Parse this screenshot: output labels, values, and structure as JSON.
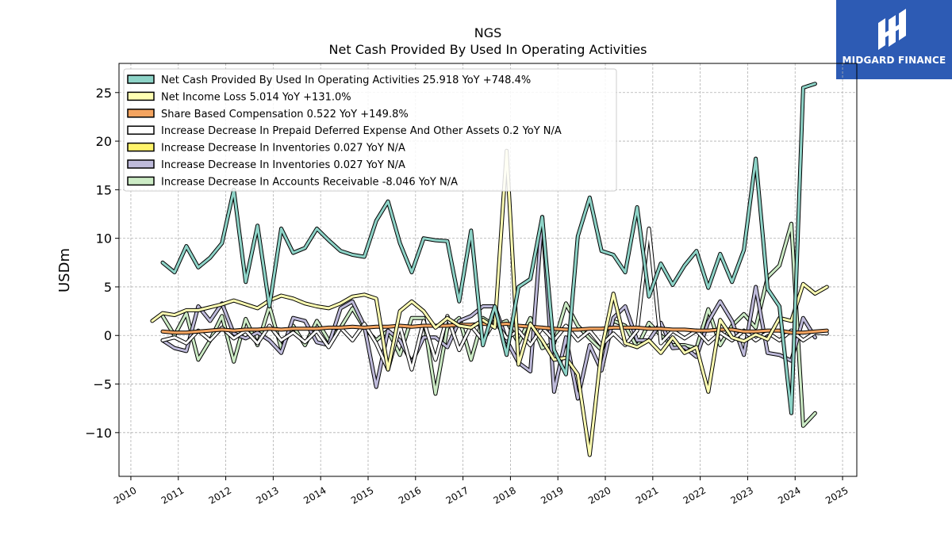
{
  "chart_data": {
    "type": "line",
    "title": "NGS",
    "subtitle": "Net Cash Provided By Used In Operating Activities",
    "ylabel": "USDm",
    "xlabel": "",
    "xlim": [
      2009.75,
      2025.3
    ],
    "ylim": [
      -14.5,
      28
    ],
    "x_ticks": [
      2010,
      2011,
      2012,
      2013,
      2014,
      2015,
      2016,
      2017,
      2018,
      2019,
      2020,
      2021,
      2022,
      2023,
      2024,
      2025
    ],
    "y_ticks": [
      -10,
      -5,
      0,
      5,
      10,
      15,
      20,
      25
    ],
    "grid": true,
    "legend_position": "top-left",
    "series": [
      {
        "name": "Net Cash Provided By Used In Operating Activities",
        "legend_label": "Net Cash Provided By Used In Operating Activities  25.918 YoY +748.4%",
        "color": "#8dd3c7",
        "x": [
          2010.67,
          2010.92,
          2011.17,
          2011.42,
          2011.67,
          2011.92,
          2012.17,
          2012.42,
          2012.67,
          2012.92,
          2013.17,
          2013.42,
          2013.67,
          2013.92,
          2014.17,
          2014.42,
          2014.67,
          2014.92,
          2015.17,
          2015.42,
          2015.67,
          2015.92,
          2016.17,
          2016.42,
          2016.67,
          2016.92,
          2017.17,
          2017.42,
          2017.67,
          2017.92,
          2018.17,
          2018.42,
          2018.67,
          2018.92,
          2019.17,
          2019.42,
          2019.67,
          2019.92,
          2020.17,
          2020.42,
          2020.67,
          2020.92,
          2021.17,
          2021.42,
          2021.67,
          2021.92,
          2022.17,
          2022.42,
          2022.67,
          2022.92,
          2023.17,
          2023.42,
          2023.67,
          2023.92,
          2024.17,
          2024.42,
          2024.67
        ],
        "y": [
          7.5,
          6.5,
          9.2,
          7.0,
          8.0,
          9.5,
          15.0,
          5.5,
          11.3,
          3.0,
          11.0,
          8.5,
          9.0,
          11.0,
          9.8,
          8.7,
          8.3,
          8.1,
          11.8,
          13.8,
          9.5,
          6.5,
          10.0,
          9.8,
          9.7,
          3.5,
          10.8,
          -1.0,
          3.0,
          -2.0,
          5.0,
          5.8,
          12.2,
          -1.5,
          -4.0,
          10.2,
          14.2,
          8.7,
          8.3,
          6.5,
          13.2,
          4.0,
          7.4,
          5.2,
          7.2,
          8.7,
          4.9,
          8.4,
          5.5,
          8.8,
          18.2,
          4.8,
          3.0,
          -8.0,
          25.5,
          25.9,
          null
        ]
      },
      {
        "name": "Net Income Loss",
        "legend_label": "Net Income Loss  5.014 YoY +131.0%",
        "color": "#ffffb3",
        "x": [
          2010.45,
          2010.67,
          2010.92,
          2011.17,
          2011.42,
          2011.67,
          2011.92,
          2012.17,
          2012.42,
          2012.67,
          2012.92,
          2013.17,
          2013.42,
          2013.67,
          2013.92,
          2014.17,
          2014.42,
          2014.67,
          2014.92,
          2015.17,
          2015.42,
          2015.67,
          2015.92,
          2016.17,
          2016.42,
          2016.67,
          2016.92,
          2017.17,
          2017.42,
          2017.67,
          2017.92,
          2018.17,
          2018.42,
          2018.67,
          2018.92,
          2019.17,
          2019.42,
          2019.67,
          2019.92,
          2020.17,
          2020.42,
          2020.67,
          2020.92,
          2021.17,
          2021.42,
          2021.67,
          2021.92,
          2022.17,
          2022.42,
          2022.67,
          2022.92,
          2023.17,
          2023.42,
          2023.67,
          2023.92,
          2024.17,
          2024.42,
          2024.67
        ],
        "y": [
          1.5,
          2.3,
          2.1,
          2.6,
          2.6,
          2.9,
          3.2,
          3.6,
          3.2,
          2.8,
          3.6,
          4.1,
          3.8,
          3.3,
          3.0,
          2.8,
          3.3,
          4.0,
          4.2,
          3.8,
          -3.5,
          2.5,
          3.5,
          2.5,
          0.8,
          1.8,
          1.0,
          0.8,
          1.6,
          0.8,
          19.0,
          -3.0,
          1.2,
          -0.5,
          -2.5,
          -2.3,
          -4.0,
          -12.3,
          -1.5,
          4.3,
          -0.8,
          -1.2,
          -0.5,
          -1.8,
          -0.2,
          -1.8,
          -1.2,
          -5.8,
          1.6,
          -0.2,
          -0.6,
          0.1,
          -0.4,
          1.8,
          1.5,
          5.3,
          4.3,
          5.0
        ]
      },
      {
        "name": "Share Based Compensation",
        "legend_label": "Share Based Compensation  0.522 YoY +149.8%",
        "color": "#f4a460",
        "x": [
          2010.67,
          2010.92,
          2011.17,
          2011.42,
          2011.67,
          2011.92,
          2012.17,
          2012.42,
          2012.67,
          2012.92,
          2013.17,
          2013.42,
          2013.67,
          2013.92,
          2014.17,
          2014.42,
          2014.67,
          2014.92,
          2015.17,
          2015.42,
          2015.67,
          2015.92,
          2016.17,
          2016.42,
          2016.67,
          2016.92,
          2017.17,
          2017.42,
          2017.67,
          2017.92,
          2018.17,
          2018.42,
          2018.67,
          2018.92,
          2019.17,
          2019.42,
          2019.67,
          2019.92,
          2020.17,
          2020.42,
          2020.67,
          2020.92,
          2021.17,
          2021.42,
          2021.67,
          2021.92,
          2022.17,
          2022.42,
          2022.67,
          2022.92,
          2023.17,
          2023.42,
          2023.67,
          2023.92,
          2024.17,
          2024.42,
          2024.67
        ],
        "y": [
          0.4,
          0.3,
          0.3,
          0.4,
          0.5,
          0.6,
          0.5,
          0.6,
          0.6,
          0.7,
          0.6,
          0.7,
          0.7,
          0.7,
          0.8,
          0.8,
          0.9,
          0.8,
          0.9,
          0.9,
          1.0,
          0.9,
          1.0,
          1.0,
          1.0,
          1.1,
          1.1,
          1.2,
          1.1,
          1.2,
          1.0,
          0.9,
          0.8,
          0.7,
          0.6,
          0.6,
          0.7,
          0.7,
          0.8,
          0.8,
          0.8,
          0.7,
          0.7,
          0.6,
          0.6,
          0.5,
          0.5,
          0.6,
          0.6,
          0.4,
          0.4,
          0.5,
          0.5,
          0.3,
          0.3,
          0.4,
          0.5
        ]
      },
      {
        "name": "Increase Decrease In Prepaid Deferred Expense And Other Assets",
        "legend_label": "Increase Decrease In Prepaid Deferred Expense And Other Assets  0.2 YoY N/A",
        "color": "#ffffff",
        "x": [
          2010.67,
          2010.92,
          2011.17,
          2011.42,
          2011.67,
          2011.92,
          2012.17,
          2012.42,
          2012.67,
          2012.92,
          2013.17,
          2013.42,
          2013.67,
          2013.92,
          2014.17,
          2014.42,
          2014.67,
          2014.92,
          2015.17,
          2015.42,
          2015.67,
          2015.92,
          2016.17,
          2016.42,
          2016.67,
          2016.92,
          2017.17,
          2017.42,
          2017.67,
          2017.92,
          2018.17,
          2018.42,
          2018.67,
          2018.92,
          2019.17,
          2019.42,
          2019.67,
          2019.92,
          2020.17,
          2020.42,
          2020.67,
          2020.92,
          2021.17,
          2021.42,
          2021.67,
          2021.92,
          2022.17,
          2022.42,
          2022.67,
          2022.92,
          2023.17,
          2023.42,
          2023.67,
          2023.92,
          2024.17,
          2024.42,
          2024.67
        ],
        "y": [
          -0.5,
          -0.2,
          -0.8,
          0.5,
          -0.5,
          0.8,
          -0.3,
          0.5,
          -0.8,
          1.0,
          -0.5,
          0.3,
          -0.7,
          0.5,
          -1.2,
          0.8,
          -0.5,
          1.2,
          -0.8,
          -3.5,
          1.0,
          -3.5,
          1.5,
          -2.5,
          2.0,
          -1.5,
          1.0,
          -0.5,
          1.5,
          -0.3,
          0.5,
          -1.0,
          0.8,
          -0.5,
          1.0,
          -0.5,
          0.5,
          -1.0,
          0.2,
          -1.0,
          0.5,
          11.0,
          -0.8,
          0.5,
          -0.3,
          0.5,
          -0.8,
          0.3,
          -0.5,
          0.5,
          -0.5,
          0.3,
          -0.5,
          0.5,
          -0.5,
          0.3,
          0.2
        ]
      },
      {
        "name": "Increase Decrease In Inventories",
        "legend_label": "Increase Decrease In Inventories  0.027 YoY N/A",
        "color": "#fff36b",
        "x": [],
        "y": []
      },
      {
        "name": "Increase Decrease In Inventories",
        "legend_label": "Increase Decrease In Inventories  0.027 YoY N/A",
        "color": "#bebada",
        "x": [
          2010.67,
          2010.92,
          2011.17,
          2011.42,
          2011.67,
          2011.92,
          2012.17,
          2012.42,
          2012.67,
          2012.92,
          2013.17,
          2013.42,
          2013.67,
          2013.92,
          2014.17,
          2014.42,
          2014.67,
          2014.92,
          2015.17,
          2015.42,
          2015.67,
          2015.92,
          2016.17,
          2016.42,
          2016.67,
          2016.92,
          2017.17,
          2017.42,
          2017.67,
          2017.92,
          2018.17,
          2018.42,
          2018.67,
          2018.92,
          2019.17,
          2019.42,
          2019.67,
          2019.92,
          2020.17,
          2020.42,
          2020.67,
          2020.92,
          2021.17,
          2021.42,
          2021.67,
          2021.92,
          2022.17,
          2022.42,
          2022.67,
          2022.92,
          2023.17,
          2023.42,
          2023.67,
          2023.92,
          2024.17,
          2024.42,
          2024.67
        ],
        "y": [
          -0.5,
          -1.3,
          -1.6,
          3.0,
          1.5,
          3.3,
          0.2,
          -0.3,
          0.3,
          -0.5,
          -1.8,
          1.8,
          1.5,
          -0.7,
          -1.0,
          2.8,
          3.5,
          1.0,
          -5.3,
          0.5,
          -0.5,
          -2.8,
          -0.2,
          -0.2,
          -1.2,
          1.5,
          2.0,
          3.0,
          3.0,
          -0.5,
          -2.8,
          -3.7,
          12.2,
          -5.8,
          -0.2,
          -6.5,
          -1.0,
          -3.6,
          1.8,
          3.0,
          -0.5,
          -0.5,
          1.3,
          -1.3,
          -1.2,
          -2.2,
          1.4,
          3.5,
          1.5,
          -2.0,
          5.0,
          -1.8,
          -2.0,
          -2.6,
          1.8,
          -0.2,
          null
        ]
      },
      {
        "name": "Increase Decrease In Accounts Receivable",
        "legend_label": "Increase Decrease In Accounts Receivable  -8.046 YoY N/A",
        "color": "#ccebc5",
        "x": [
          2010.67,
          2010.92,
          2011.17,
          2011.42,
          2011.67,
          2011.92,
          2012.17,
          2012.42,
          2012.67,
          2012.92,
          2013.17,
          2013.42,
          2013.67,
          2013.92,
          2014.17,
          2014.42,
          2014.67,
          2014.92,
          2015.17,
          2015.42,
          2015.67,
          2015.92,
          2016.17,
          2016.42,
          2016.67,
          2016.92,
          2017.17,
          2017.42,
          2017.67,
          2017.92,
          2018.17,
          2018.42,
          2018.67,
          2018.92,
          2019.17,
          2019.42,
          2019.67,
          2019.92,
          2020.17,
          2020.42,
          2020.67,
          2020.92,
          2021.17,
          2021.42,
          2021.67,
          2021.92,
          2022.17,
          2022.42,
          2022.67,
          2022.92,
          2023.17,
          2023.42,
          2023.67,
          2023.92,
          2024.17,
          2024.42,
          2024.67
        ],
        "y": [
          2.0,
          0.0,
          2.3,
          -2.5,
          -0.5,
          2.0,
          -2.7,
          1.7,
          -1.0,
          3.0,
          -1.3,
          1.0,
          -1.0,
          1.5,
          -0.5,
          0.8,
          2.8,
          0.8,
          -0.5,
          0.5,
          -2.0,
          1.8,
          1.8,
          -6.0,
          0.8,
          1.8,
          -2.5,
          1.8,
          1.0,
          1.5,
          -0.8,
          1.8,
          -1.3,
          -0.8,
          3.3,
          1.0,
          -0.3,
          -1.5,
          1.5,
          1.0,
          -1.2,
          1.3,
          0.0,
          -1.0,
          -1.0,
          -1.3,
          2.7,
          -1.0,
          1.0,
          2.2,
          0.8,
          6.0,
          7.2,
          11.5,
          -9.3,
          -8.0,
          null
        ]
      }
    ]
  },
  "logo": {
    "text": "MIDGARD FINANCE",
    "color": "#2d5bb4"
  }
}
